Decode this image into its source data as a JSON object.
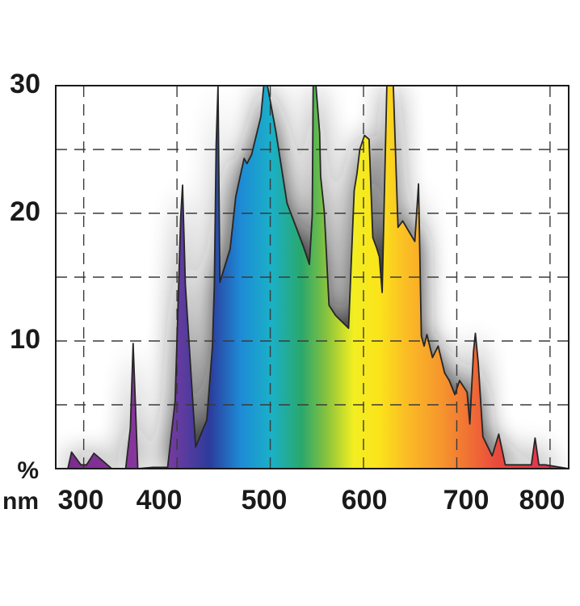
{
  "chart_data": {
    "type": "area",
    "x_unit": "nm",
    "y_unit": "%",
    "xlim": [
      270,
      820
    ],
    "ylim": [
      0,
      30
    ],
    "x_ticks": [
      300,
      400,
      500,
      600,
      700,
      800
    ],
    "y_ticks": [
      10,
      20,
      30
    ],
    "x_tick_labels": [
      "300",
      "400",
      "500",
      "600",
      "700",
      "800"
    ],
    "y_tick_labels": [
      "10",
      "20",
      "30"
    ],
    "grid": true,
    "spectrum_colors": [
      "#7a2a8c",
      "#8a3aa0",
      "#2c3c9c",
      "#1e8ad6",
      "#1ab0c8",
      "#2aa86a",
      "#8cc43c",
      "#f2ee22",
      "#fbe41a",
      "#fbbf25",
      "#f5902e",
      "#ea4a3c",
      "#de2a5a"
    ],
    "series": [
      {
        "x": [
          283,
          287,
          297,
          303,
          311,
          330,
          338,
          345,
          350,
          353,
          358,
          374,
          390,
          398,
          404,
          406,
          409,
          420,
          432,
          438,
          440,
          442,
          444,
          446,
          457,
          463,
          472,
          475,
          480,
          490,
          493,
          497,
          506,
          518,
          535,
          542,
          545,
          546,
          549,
          553,
          554,
          558,
          563,
          570,
          584,
          590,
          593,
          596,
          601,
          606,
          610,
          614,
          617,
          620,
          625,
          632,
          637,
          642,
          655,
          659,
          662,
          665,
          668,
          674,
          680,
          687,
          692,
          698,
          703,
          711,
          714,
          718,
          720,
          723,
          728,
          738,
          745,
          752,
          760,
          780,
          784,
          788,
          795,
          820
        ],
        "y": [
          0,
          1.3,
          0.3,
          0.3,
          1.2,
          0,
          0,
          0,
          3.2,
          9.8,
          0,
          0.1,
          0.1,
          5.3,
          19.7,
          22.2,
          14.4,
          1.7,
          3.8,
          9.6,
          14.2,
          25.4,
          30,
          14.6,
          17.2,
          21.3,
          24.3,
          23.9,
          24.6,
          27.6,
          30,
          30,
          26.4,
          20.8,
          17.5,
          16,
          19.8,
          30,
          30,
          26.3,
          22.9,
          20.1,
          12.8,
          12,
          11,
          21.8,
          23.1,
          25,
          26.1,
          25.8,
          18.1,
          17.3,
          16.6,
          13.8,
          30,
          30,
          18.9,
          19.4,
          17.8,
          22.3,
          10.4,
          9.6,
          10.5,
          8.7,
          9.6,
          7.5,
          6.9,
          5.8,
          6.9,
          6,
          3.5,
          9.2,
          10.6,
          8.3,
          2.5,
          1,
          2.7,
          0.3,
          0.3,
          0.3,
          2.4,
          0.3,
          0.3,
          0
        ]
      }
    ]
  }
}
